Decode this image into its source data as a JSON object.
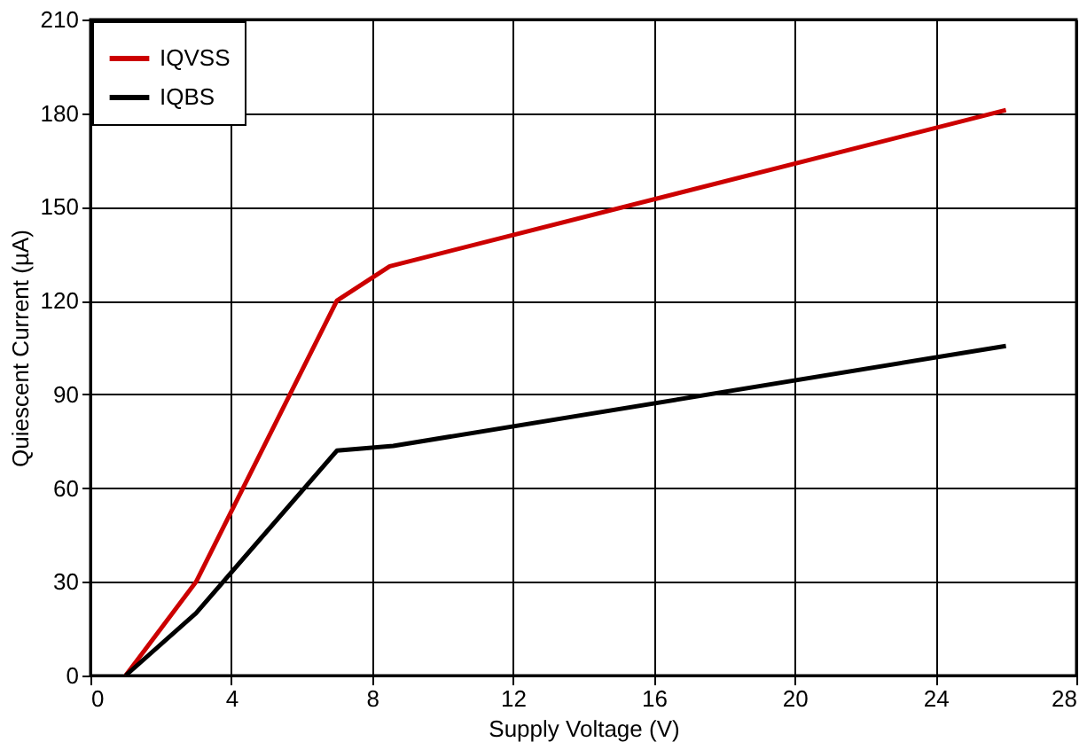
{
  "chart_data": {
    "type": "line",
    "xlabel": "Supply Voltage (V)",
    "ylabel": "Quiescent Current (µA)",
    "xlim": [
      0,
      28
    ],
    "xticks": [
      0,
      4,
      8,
      12,
      16,
      20,
      24,
      28
    ],
    "ylim": [
      0,
      210
    ],
    "yticks": [
      0,
      30,
      60,
      90,
      120,
      150,
      180,
      210
    ],
    "grid": true,
    "legend": "top left",
    "line_style": "solid",
    "marker": "none",
    "series": [
      {
        "name": "IQVSS",
        "color": "#cc0000",
        "x": [
          1,
          3,
          7,
          8.5,
          26
        ],
        "values": [
          0,
          30,
          120,
          131,
          181
        ]
      },
      {
        "name": "IQBS",
        "color": "#000000",
        "x": [
          1,
          3,
          7,
          8.6,
          26
        ],
        "values": [
          0,
          20,
          72,
          73.5,
          105.5
        ]
      }
    ]
  }
}
